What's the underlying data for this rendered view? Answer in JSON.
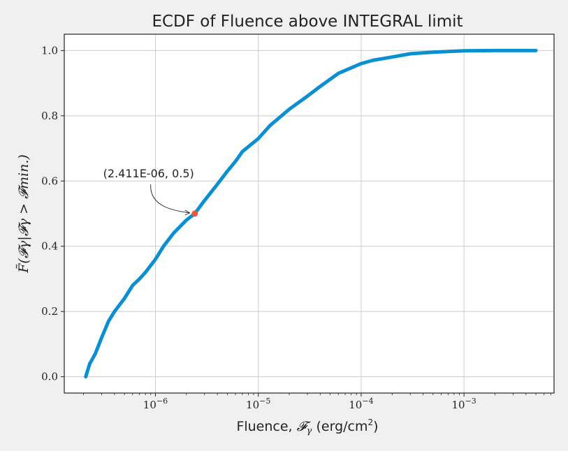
{
  "chart_data": {
    "type": "line",
    "title": "ECDF of Fluence above INTEGRAL limit",
    "xlabel_text": "Fluence, ",
    "xlabel_symbol": "𝓕",
    "xlabel_subscript": "γ",
    "xlabel_unit": " (erg/cm",
    "xlabel_unit_exp": "2",
    "xlabel_unit_close": ")",
    "ylabel": "F̃(𝓕γ|𝓕γ > 𝓕min.)",
    "x_scale": "log",
    "xlim": [
      1.3e-07,
      0.0075
    ],
    "ylim": [
      -0.05,
      1.05
    ],
    "x_ticks": [
      {
        "value": 1e-06,
        "base": "10",
        "exp": "−6"
      },
      {
        "value": 1e-05,
        "base": "10",
        "exp": "−5"
      },
      {
        "value": 0.0001,
        "base": "10",
        "exp": "−4"
      },
      {
        "value": 0.001,
        "base": "10",
        "exp": "−3"
      }
    ],
    "y_ticks": [
      {
        "value": 0.0,
        "label": "0.0"
      },
      {
        "value": 0.2,
        "label": "0.2"
      },
      {
        "value": 0.4,
        "label": "0.4"
      },
      {
        "value": 0.6,
        "label": "0.6"
      },
      {
        "value": 0.8,
        "label": "0.8"
      },
      {
        "value": 1.0,
        "label": "1.0"
      }
    ],
    "grid": true,
    "series": [
      {
        "color": "#0a8fd0",
        "x": [
          2.1e-07,
          2.3e-07,
          2.6e-07,
          3e-07,
          3.5e-07,
          4e-07,
          5e-07,
          6e-07,
          7e-07,
          8e-07,
          1e-06,
          1.2e-06,
          1.5e-06,
          2e-06,
          2.411e-06,
          3e-06,
          4e-06,
          5e-06,
          6e-06,
          7e-06,
          1e-05,
          1.3e-05,
          2e-05,
          3e-05,
          4e-05,
          6e-05,
          0.0001,
          0.00013,
          0.0002,
          0.0003,
          0.0005,
          0.0007,
          0.001,
          0.002,
          0.005
        ],
        "y": [
          0.0,
          0.04,
          0.07,
          0.12,
          0.17,
          0.2,
          0.24,
          0.28,
          0.3,
          0.32,
          0.36,
          0.4,
          0.44,
          0.48,
          0.5,
          0.54,
          0.59,
          0.63,
          0.66,
          0.69,
          0.73,
          0.77,
          0.82,
          0.86,
          0.89,
          0.93,
          0.96,
          0.97,
          0.98,
          0.99,
          0.995,
          0.997,
          0.999,
          1.0,
          1.0
        ]
      }
    ],
    "highlight_point": {
      "x": 2.411e-06,
      "y": 0.5,
      "color": "#e8583d"
    },
    "annotation": {
      "text": "(2.411E-06, 0.5)",
      "x": 2.411e-06,
      "y": 0.5
    }
  }
}
